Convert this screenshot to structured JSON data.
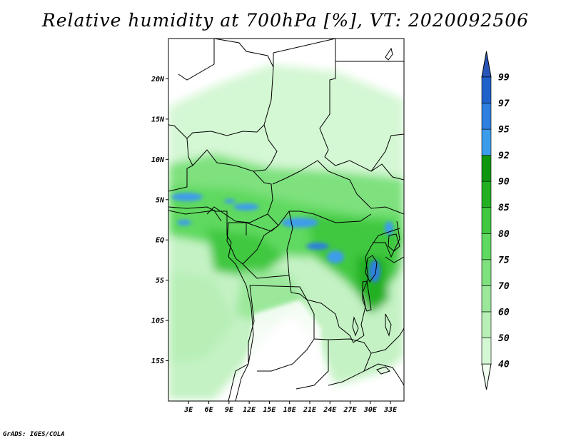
{
  "title": "Relative humidity at 700hPa [%], VT: 2020092506",
  "credit": "GrADS: IGES/COLA",
  "map": {
    "lat_ticks": [
      {
        "lat": 20,
        "label": "20N"
      },
      {
        "lat": 15,
        "label": "15N"
      },
      {
        "lat": 10,
        "label": "10N"
      },
      {
        "lat": 5,
        "label": "5N"
      },
      {
        "lat": 0,
        "label": "EQ"
      },
      {
        "lat": -5,
        "label": "5S"
      },
      {
        "lat": -10,
        "label": "10S"
      },
      {
        "lat": -15,
        "label": "15S"
      }
    ],
    "lon_ticks": [
      {
        "lon": 3,
        "label": "3E"
      },
      {
        "lon": 6,
        "label": "6E"
      },
      {
        "lon": 9,
        "label": "9E"
      },
      {
        "lon": 12,
        "label": "12E"
      },
      {
        "lon": 15,
        "label": "15E"
      },
      {
        "lon": 18,
        "label": "18E"
      },
      {
        "lon": 21,
        "label": "21E"
      },
      {
        "lon": 24,
        "label": "24E"
      },
      {
        "lon": 27,
        "label": "27E"
      },
      {
        "lon": 30,
        "label": "30E"
      },
      {
        "lon": 33,
        "label": "33E"
      }
    ],
    "lon_range": [
      0,
      35
    ],
    "lat_range": [
      -20,
      25
    ]
  },
  "colorbar": {
    "levels": [
      "40",
      "50",
      "60",
      "70",
      "75",
      "80",
      "85",
      "90",
      "92",
      "95",
      "97",
      "99"
    ],
    "colors": [
      "#f0fff0",
      "#d4f7d4",
      "#b7efb7",
      "#9be89b",
      "#7ee17e",
      "#5fd95f",
      "#40c840",
      "#22b022",
      "#0f960f",
      "#3c9cec",
      "#2d7fe0",
      "#1f62cc",
      "#2a55b8"
    ]
  },
  "colors": {
    "land_white": "#ffffff",
    "border": "#000000"
  }
}
